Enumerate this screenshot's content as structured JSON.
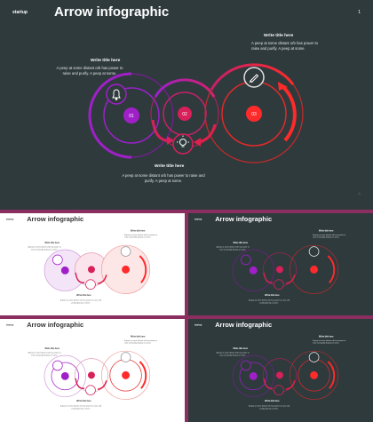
{
  "slide": {
    "brand": "startup",
    "title": "Arrow infographic",
    "page_number": "1"
  },
  "blocks": [
    {
      "title": "Write title here",
      "text": "A peep at some distant orb has power to raise and purify. A peep at some."
    },
    {
      "title": "Write title here",
      "text": "A peep at some distant orb has power to raise and purify. A peep at some."
    },
    {
      "title": "Write title here",
      "text": "A peep at some distant orb has power to raise and purify. A peep at some."
    }
  ],
  "circles": {
    "labels": [
      "01",
      "02",
      "03"
    ],
    "icons": [
      "bell-icon",
      "lightbulb-icon",
      "pencil-icon"
    ]
  },
  "colors": {
    "purple": "#a020c8",
    "magenta": "#d8205a",
    "red": "#ff2a2a",
    "dark_bg": "#2f3a3d",
    "frame": "#8a2f5f"
  }
}
